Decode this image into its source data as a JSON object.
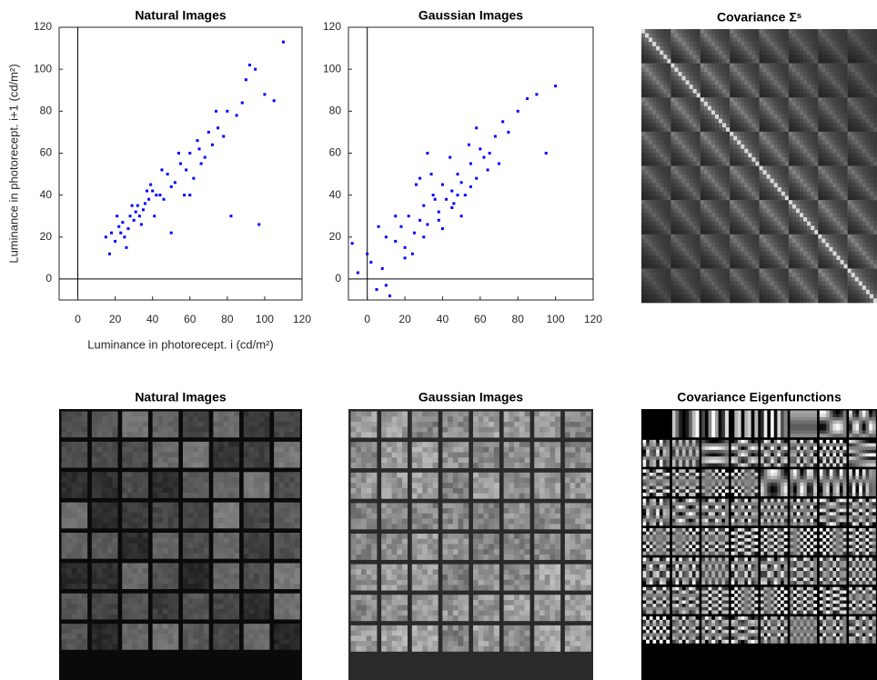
{
  "chart_data": [
    {
      "type": "scatter",
      "title": "Natural Images",
      "xlabel": "Luminance in photorecept. i  (cd/m²)",
      "ylabel": "Luminance in photorecept. i+1  (cd/m²)",
      "color": "#0000ff",
      "xlim": [
        -10,
        120
      ],
      "ylim": [
        -10,
        120
      ],
      "xticks": [
        0,
        20,
        40,
        60,
        80,
        100,
        120
      ],
      "yticks": [
        0,
        20,
        40,
        60,
        80,
        100,
        120
      ],
      "x": [
        18,
        22,
        25,
        28,
        30,
        32,
        35,
        38,
        40,
        42,
        20,
        24,
        27,
        31,
        33,
        36,
        39,
        44,
        48,
        52,
        55,
        58,
        60,
        62,
        65,
        68,
        70,
        72,
        75,
        78,
        80,
        85,
        90,
        95,
        100,
        105,
        110,
        26,
        29,
        34,
        37,
        41,
        45,
        50,
        15,
        17,
        21,
        23,
        46,
        54,
        57,
        64,
        66,
        74,
        82,
        88,
        92,
        97,
        60,
        50
      ],
      "values": [
        22,
        25,
        20,
        30,
        28,
        35,
        33,
        38,
        42,
        40,
        18,
        27,
        24,
        32,
        30,
        36,
        45,
        40,
        50,
        46,
        55,
        52,
        60,
        48,
        62,
        58,
        70,
        64,
        72,
        68,
        80,
        78,
        95,
        100,
        88,
        85,
        113,
        15,
        35,
        26,
        42,
        30,
        52,
        44,
        20,
        12,
        30,
        22,
        38,
        60,
        40,
        66,
        55,
        80,
        30,
        84,
        102,
        26,
        40,
        22
      ]
    },
    {
      "type": "scatter",
      "title": "Gaussian Images",
      "color": "#0000ff",
      "xlim": [
        -10,
        120
      ],
      "ylim": [
        -10,
        120
      ],
      "xticks": [
        0,
        20,
        40,
        60,
        80,
        100,
        120
      ],
      "yticks": [
        0,
        20,
        40,
        60,
        80,
        100,
        120
      ],
      "x": [
        -8,
        -5,
        0,
        5,
        8,
        10,
        12,
        15,
        18,
        20,
        22,
        25,
        28,
        30,
        32,
        35,
        38,
        40,
        42,
        45,
        48,
        50,
        52,
        55,
        58,
        60,
        62,
        65,
        68,
        70,
        72,
        75,
        80,
        85,
        90,
        95,
        100,
        15,
        20,
        26,
        30,
        34,
        38,
        44,
        46,
        50,
        54,
        58,
        36,
        28,
        24,
        40,
        45,
        55,
        64,
        10,
        6,
        2,
        48,
        32
      ],
      "values": [
        17,
        3,
        12,
        -5,
        5,
        20,
        -8,
        18,
        25,
        15,
        30,
        22,
        28,
        35,
        26,
        40,
        32,
        45,
        38,
        42,
        50,
        46,
        40,
        55,
        48,
        62,
        58,
        60,
        68,
        55,
        75,
        70,
        80,
        86,
        88,
        60,
        92,
        30,
        10,
        45,
        20,
        50,
        28,
        58,
        36,
        30,
        64,
        72,
        38,
        48,
        12,
        24,
        34,
        44,
        52,
        -3,
        25,
        8,
        40,
        60
      ]
    },
    {
      "type": "matrix",
      "title": "Covariance Σˢ"
    },
    {
      "type": "patches",
      "title": "Natural Images",
      "tone": "natural"
    },
    {
      "type": "patches",
      "title": "Gaussian Images",
      "tone": "gaussian"
    },
    {
      "type": "eigen",
      "title": "Covariance Eigenfunctions"
    }
  ]
}
